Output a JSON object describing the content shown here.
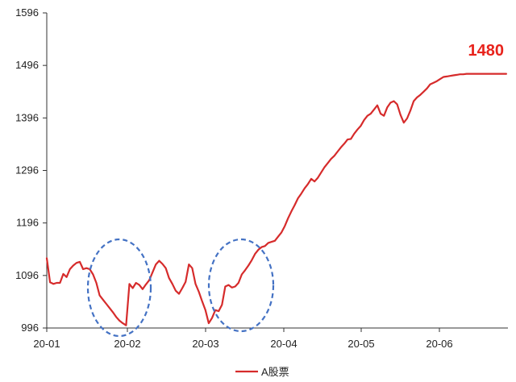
{
  "chart_data": {
    "type": "line",
    "ylim": [
      996,
      1596
    ],
    "y_ticks": [
      "1596",
      "1496",
      "1396",
      "1296",
      "1196",
      "1096",
      "996"
    ],
    "x_ticks": [
      "20-01",
      "20-02",
      "20-03",
      "20-04",
      "20-05",
      "20-06"
    ],
    "grid": false,
    "legend_position": "bottom-center",
    "end_label": "1480",
    "colors": {
      "series": "#d62b2b",
      "end_label": "#e8231c",
      "ellipse": "#4472c4",
      "axis": "#333333"
    },
    "highlights": [
      {
        "from": "20-01",
        "to": "20-02",
        "style": "dashed-ellipse"
      },
      {
        "from": "20-03",
        "to": "20-04",
        "style": "dashed-ellipse"
      }
    ],
    "series": [
      {
        "name": "A股票",
        "x": [
          0,
          1,
          2,
          3,
          4,
          5,
          6,
          7,
          8,
          9,
          10,
          11,
          12,
          13,
          14,
          15,
          16,
          17,
          18,
          19,
          20,
          21,
          22,
          23,
          24,
          25,
          26,
          27,
          28,
          29,
          30,
          31,
          32,
          33,
          34,
          35,
          36,
          37,
          38,
          39,
          40,
          41,
          42,
          43,
          44,
          45,
          46,
          47,
          48,
          49,
          50,
          51,
          52,
          53,
          54,
          55,
          56,
          57,
          58,
          59,
          60,
          61,
          62,
          63,
          64,
          65,
          66,
          67,
          68,
          69,
          70,
          71,
          72,
          73,
          74,
          75,
          76,
          77,
          78,
          79,
          80,
          81,
          82,
          83,
          84,
          85,
          86,
          87,
          88,
          89,
          90,
          91,
          92,
          93,
          94,
          95,
          96,
          97,
          98,
          99,
          100,
          101,
          102,
          103,
          104,
          105,
          106,
          107,
          108,
          109,
          110,
          111,
          112,
          113,
          114,
          115,
          116,
          117,
          118,
          119,
          120,
          121,
          122,
          123,
          124,
          125,
          126,
          127,
          128,
          129,
          130,
          131,
          132,
          133,
          134,
          135,
          136,
          137,
          138,
          139
        ],
        "values": [
          1129,
          1083,
          1080,
          1082,
          1082,
          1099,
          1093,
          1108,
          1115,
          1120,
          1122,
          1108,
          1110,
          1108,
          1098,
          1082,
          1058,
          1050,
          1042,
          1034,
          1026,
          1017,
          1010,
          1005,
          1001,
          1080,
          1072,
          1082,
          1078,
          1070,
          1079,
          1087,
          1102,
          1117,
          1124,
          1118,
          1110,
          1091,
          1080,
          1067,
          1061,
          1072,
          1084,
          1117,
          1110,
          1080,
          1065,
          1047,
          1030,
          1005,
          1015,
          1030,
          1028,
          1040,
          1075,
          1078,
          1073,
          1075,
          1082,
          1098,
          1106,
          1115,
          1125,
          1137,
          1145,
          1150,
          1152,
          1158,
          1160,
          1162,
          1170,
          1178,
          1190,
          1205,
          1218,
          1230,
          1243,
          1252,
          1262,
          1270,
          1280,
          1275,
          1282,
          1292,
          1302,
          1310,
          1318,
          1324,
          1332,
          1340,
          1347,
          1355,
          1356,
          1366,
          1374,
          1381,
          1392,
          1400,
          1404,
          1412,
          1420,
          1404,
          1400,
          1416,
          1425,
          1428,
          1422,
          1402,
          1387,
          1395,
          1410,
          1428,
          1435,
          1440,
          1446,
          1452,
          1460,
          1463,
          1466,
          1470,
          1474,
          1475,
          1476,
          1477,
          1478,
          1479,
          1479,
          1480,
          1480,
          1480,
          1480,
          1480,
          1480,
          1480,
          1480,
          1480,
          1480,
          1480,
          1480,
          1480
        ]
      }
    ]
  }
}
